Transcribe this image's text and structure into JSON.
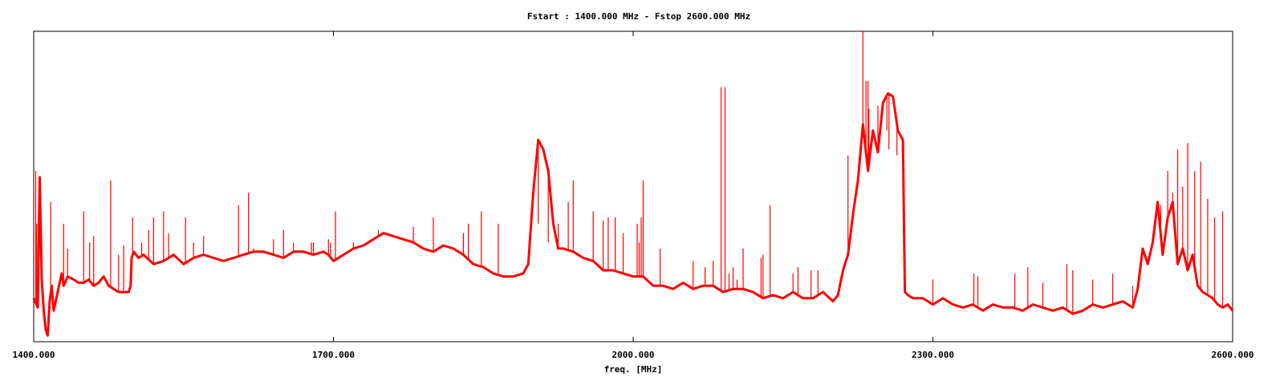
{
  "chart_data": {
    "type": "line",
    "title": "Fstart : 1400.000 MHz  -  Fstop 2600.000 MHz",
    "xlabel": "freq. [MHz]",
    "ylabel": "",
    "xlim": [
      1400,
      2600
    ],
    "ylim": [
      0,
      100
    ],
    "grid": false,
    "legend": "none",
    "x_ticks": [
      {
        "value": 1400,
        "label": "1400.000"
      },
      {
        "value": 1700,
        "label": "1700.000"
      },
      {
        "value": 2000,
        "label": "2000.000"
      },
      {
        "value": 2300,
        "label": "2300.000"
      },
      {
        "value": 2600,
        "label": "2600.000"
      }
    ],
    "series": [
      {
        "color": "#ff0000",
        "x": [
          1400,
          1404,
          1406,
          1408,
          1410,
          1412,
          1414,
          1416,
          1418,
          1420,
          1424,
          1428,
          1430,
          1434,
          1440,
          1445,
          1450,
          1455,
          1460,
          1465,
          1470,
          1475,
          1480,
          1485,
          1490,
          1495,
          1497,
          1498,
          1500,
          1505,
          1510,
          1520,
          1530,
          1540,
          1550,
          1560,
          1570,
          1580,
          1590,
          1600,
          1610,
          1620,
          1630,
          1640,
          1650,
          1660,
          1670,
          1680,
          1690,
          1695,
          1700,
          1710,
          1720,
          1730,
          1740,
          1750,
          1760,
          1770,
          1780,
          1790,
          1800,
          1810,
          1820,
          1830,
          1840,
          1850,
          1860,
          1870,
          1880,
          1890,
          1895,
          1900,
          1905,
          1910,
          1915,
          1920,
          1925,
          1930,
          1940,
          1950,
          1960,
          1970,
          1980,
          1990,
          2000,
          2010,
          2020,
          2030,
          2040,
          2050,
          2060,
          2070,
          2080,
          2090,
          2100,
          2110,
          2120,
          2130,
          2140,
          2150,
          2160,
          2170,
          2180,
          2190,
          2200,
          2205,
          2210,
          2215,
          2220,
          2225,
          2230,
          2235,
          2240,
          2245,
          2250,
          2255,
          2260,
          2265,
          2270,
          2272,
          2275,
          2280,
          2290,
          2300,
          2310,
          2320,
          2330,
          2340,
          2350,
          2360,
          2370,
          2380,
          2390,
          2400,
          2410,
          2420,
          2430,
          2440,
          2450,
          2460,
          2470,
          2480,
          2490,
          2500,
          2505,
          2510,
          2515,
          2520,
          2525,
          2530,
          2535,
          2540,
          2545,
          2550,
          2555,
          2560,
          2565,
          2570,
          2575,
          2580,
          2585,
          2590,
          2595,
          2600
        ],
        "values": [
          14,
          11,
          53,
          20,
          10,
          4,
          2,
          13,
          18,
          10,
          16,
          22,
          18,
          21,
          20,
          19,
          19,
          20,
          18,
          19,
          21,
          18,
          17,
          16,
          16,
          16,
          18,
          27,
          29,
          27,
          28,
          25,
          26,
          28,
          25,
          27,
          28,
          27,
          26,
          27,
          28,
          29,
          29,
          28,
          27,
          29,
          29,
          28,
          29,
          28,
          26,
          28,
          30,
          31,
          33,
          35,
          34,
          33,
          32,
          30,
          29,
          31,
          30,
          28,
          25,
          24,
          22,
          21,
          21,
          22,
          25,
          48,
          65,
          62,
          55,
          38,
          30,
          30,
          29,
          27,
          26,
          23,
          23,
          22,
          21,
          21,
          18,
          18,
          17,
          19,
          17,
          18,
          18,
          16,
          17,
          17,
          16,
          14,
          15,
          14,
          16,
          14,
          14,
          16,
          13,
          15,
          23,
          28,
          41,
          52,
          70,
          55,
          68,
          61,
          77,
          80,
          79,
          68,
          65,
          16,
          15,
          14,
          14,
          12,
          14,
          12,
          11,
          12,
          10,
          12,
          11,
          11,
          10,
          12,
          11,
          10,
          11,
          9,
          10,
          12,
          11,
          12,
          13,
          11,
          17,
          30,
          25,
          32,
          45,
          28,
          40,
          45,
          25,
          30,
          23,
          28,
          18,
          16,
          15,
          14,
          12,
          11,
          12,
          10
        ]
      },
      {
        "color": "#ff0000",
        "x": [
          1402,
          1403,
          1417,
          1430,
          1434,
          1450,
          1456,
          1460,
          1477,
          1485,
          1490,
          1499,
          1508,
          1515,
          1520,
          1530,
          1535,
          1552,
          1560,
          1570,
          1605,
          1615,
          1620,
          1640,
          1650,
          1660,
          1678,
          1680,
          1695,
          1697,
          1702,
          1720,
          1745,
          1780,
          1800,
          1830,
          1835,
          1848,
          1865,
          1905,
          1915,
          1925,
          1935,
          1940,
          1960,
          1970,
          1975,
          1982,
          1990,
          2004,
          2006,
          2008,
          2010,
          2027,
          2060,
          2072,
          2080,
          2088,
          2092,
          2096,
          2100,
          2104,
          2110,
          2128,
          2130,
          2137,
          2160,
          2165,
          2178,
          2185,
          2215,
          2230,
          2233,
          2235,
          2236,
          2245,
          2254,
          2256,
          2264,
          2270,
          2300,
          2341,
          2345,
          2382,
          2395,
          2410,
          2434,
          2440,
          2460,
          2480,
          2500,
          2528,
          2535,
          2540,
          2545,
          2550,
          2555,
          2562,
          2568,
          2575,
          2582,
          2590
        ],
        "values": [
          55,
          38,
          45,
          38,
          30,
          42,
          32,
          34,
          52,
          28,
          31,
          40,
          32,
          36,
          40,
          42,
          35,
          40,
          32,
          34,
          44,
          48,
          30,
          33,
          36,
          32,
          32,
          32,
          33,
          32,
          42,
          32,
          36,
          37,
          40,
          35,
          38,
          42,
          38,
          38,
          32,
          38,
          45,
          52,
          42,
          39,
          40,
          40,
          35,
          38,
          32,
          40,
          52,
          30,
          26,
          24,
          26,
          82,
          82,
          22,
          24,
          20,
          30,
          27,
          28,
          44,
          22,
          24,
          23,
          23,
          60,
          100,
          84,
          84,
          75,
          76,
          68,
          62,
          60,
          65,
          20,
          22,
          21,
          22,
          24,
          19,
          25,
          23,
          20,
          22,
          18,
          44,
          55,
          48,
          62,
          50,
          64,
          55,
          58,
          46,
          40,
          42
        ]
      }
    ]
  }
}
